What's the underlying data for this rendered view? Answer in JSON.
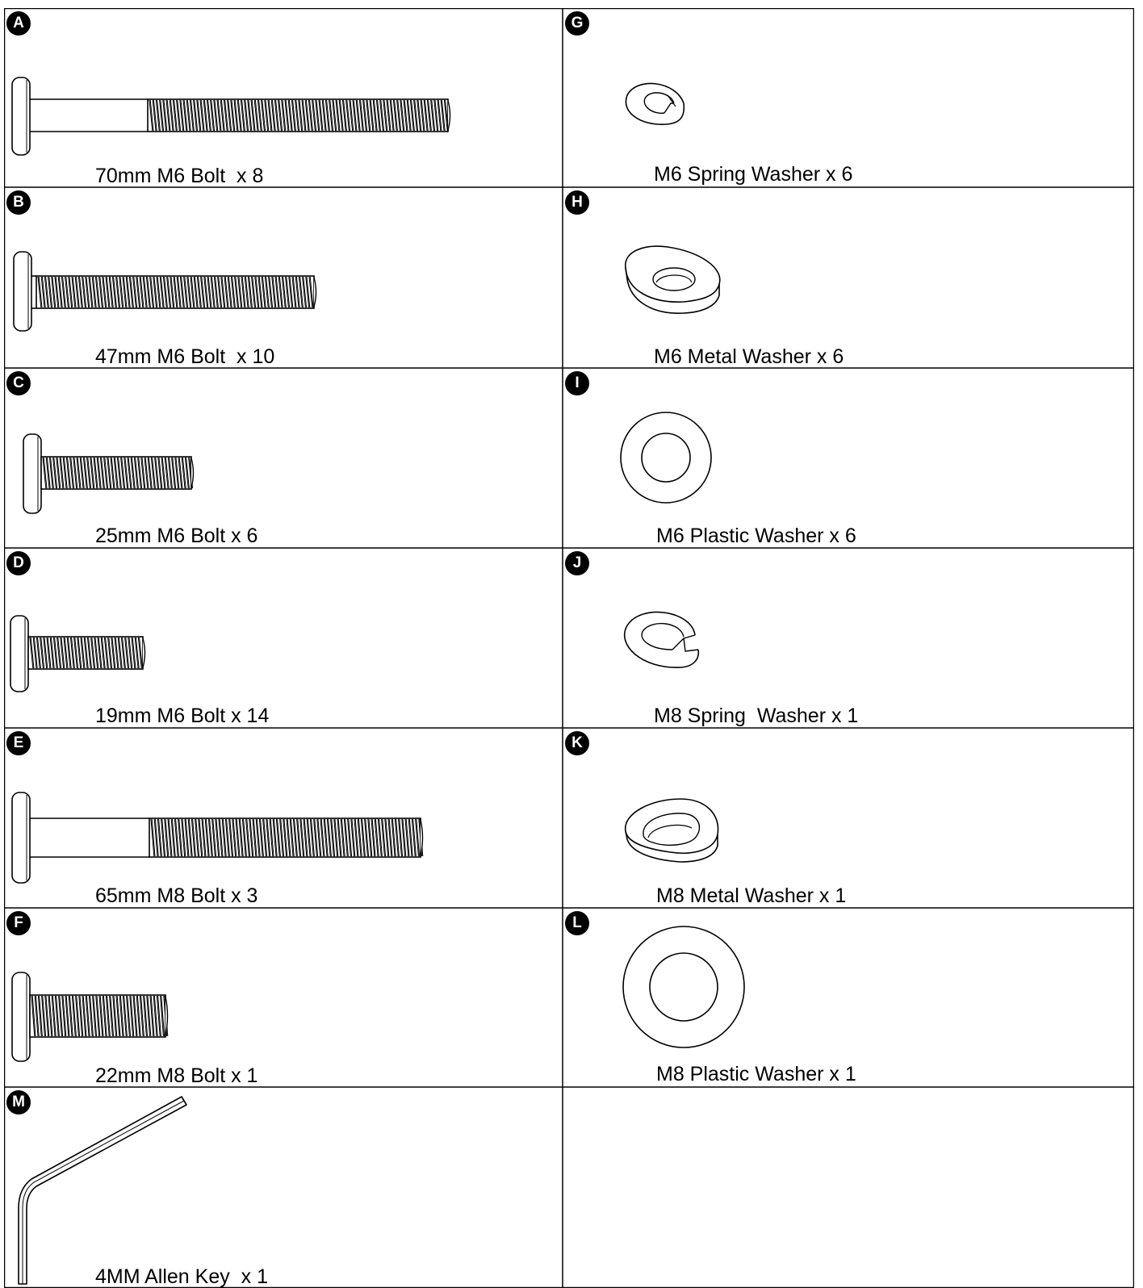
{
  "items": [
    {
      "letter": "A",
      "label": "70mm M6 Bolt  x 8"
    },
    {
      "letter": "B",
      "label": "47mm M6 Bolt  x 10"
    },
    {
      "letter": "C",
      "label": "25mm M6 Bolt x 6"
    },
    {
      "letter": "D",
      "label": "19mm M6 Bolt x 14"
    },
    {
      "letter": "E",
      "label": "65mm M8 Bolt x 3"
    },
    {
      "letter": "F",
      "label": "22mm M8 Bolt x 1"
    },
    {
      "letter": "M",
      "label": "4MM Allen Key  x 1"
    },
    {
      "letter": "G",
      "label": "M6 Spring Washer x 6"
    },
    {
      "letter": "H",
      "label": "M6 Metal Washer x 6"
    },
    {
      "letter": "I",
      "label": "M6 Plastic Washer x 6"
    },
    {
      "letter": "J",
      "label": "M8 Spring  Washer x 1"
    },
    {
      "letter": "K",
      "label": "M8 Metal Washer x 1"
    },
    {
      "letter": "L",
      "label": "M8 Plastic Washer x 1"
    }
  ],
  "colors": {
    "line": "#000000",
    "background": "#ffffff"
  }
}
